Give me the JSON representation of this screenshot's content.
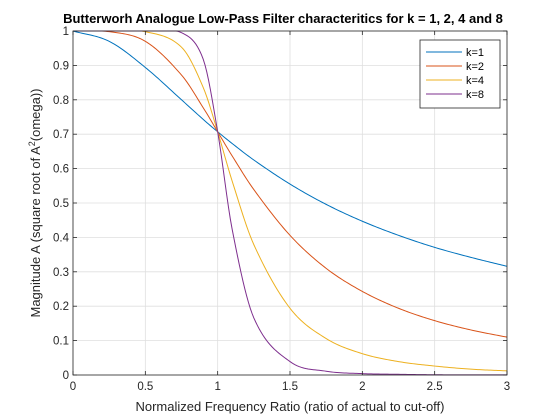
{
  "chart_data": {
    "type": "line",
    "title": "Butterworh Analogue Low-Pass Filter characteritics for k = 1, 2, 4 and 8",
    "xlabel": "Normalized Frequency Ratio (ratio of actual to cut-off)",
    "ylabel_prefix": "Magnitude A (square root of A",
    "ylabel_sup": "2",
    "ylabel_suffix": "(omega))",
    "xlim": [
      0,
      3
    ],
    "ylim": [
      0,
      1
    ],
    "x_ticks": [
      0,
      0.5,
      1,
      1.5,
      2,
      2.5,
      3
    ],
    "x_tick_labels": [
      "0",
      "0.5",
      "1",
      "1.5",
      "2",
      "2.5",
      "3"
    ],
    "y_ticks": [
      0,
      0.1,
      0.2,
      0.3,
      0.4,
      0.5,
      0.6,
      0.7,
      0.8,
      0.9,
      1
    ],
    "y_tick_labels": [
      "0",
      "0.1",
      "0.2",
      "0.3",
      "0.4",
      "0.5",
      "0.6",
      "0.7",
      "0.8",
      "0.9",
      "1"
    ],
    "grid": true,
    "legend_position": "top-right",
    "x": [
      0,
      0.25,
      0.5,
      0.75,
      0.9,
      1.0,
      1.1,
      1.25,
      1.5,
      1.75,
      2.0,
      2.25,
      2.5,
      2.75,
      3.0
    ],
    "series": [
      {
        "name": "k=1",
        "color": "#0072BD",
        "values": [
          1.0,
          0.97,
          0.894,
          0.8,
          0.743,
          0.707,
          0.673,
          0.625,
          0.555,
          0.496,
          0.447,
          0.406,
          0.371,
          0.342,
          0.316
        ]
      },
      {
        "name": "k=2",
        "color": "#D95319",
        "values": [
          1.0,
          0.998,
          0.97,
          0.872,
          0.777,
          0.707,
          0.637,
          0.539,
          0.406,
          0.31,
          0.243,
          0.194,
          0.158,
          0.131,
          0.11
        ]
      },
      {
        "name": "k=4",
        "color": "#EDB120",
        "values": [
          1.0,
          1.0,
          0.998,
          0.953,
          0.836,
          0.707,
          0.564,
          0.379,
          0.194,
          0.106,
          0.062,
          0.039,
          0.026,
          0.017,
          0.012
        ]
      },
      {
        "name": "k=8",
        "color": "#7E2F8E",
        "values": [
          1.0,
          1.0,
          1.0,
          0.995,
          0.918,
          0.707,
          0.424,
          0.166,
          0.039,
          0.011,
          0.004,
          0.002,
          0.0007,
          0.0003,
          0.0002
        ]
      }
    ]
  }
}
